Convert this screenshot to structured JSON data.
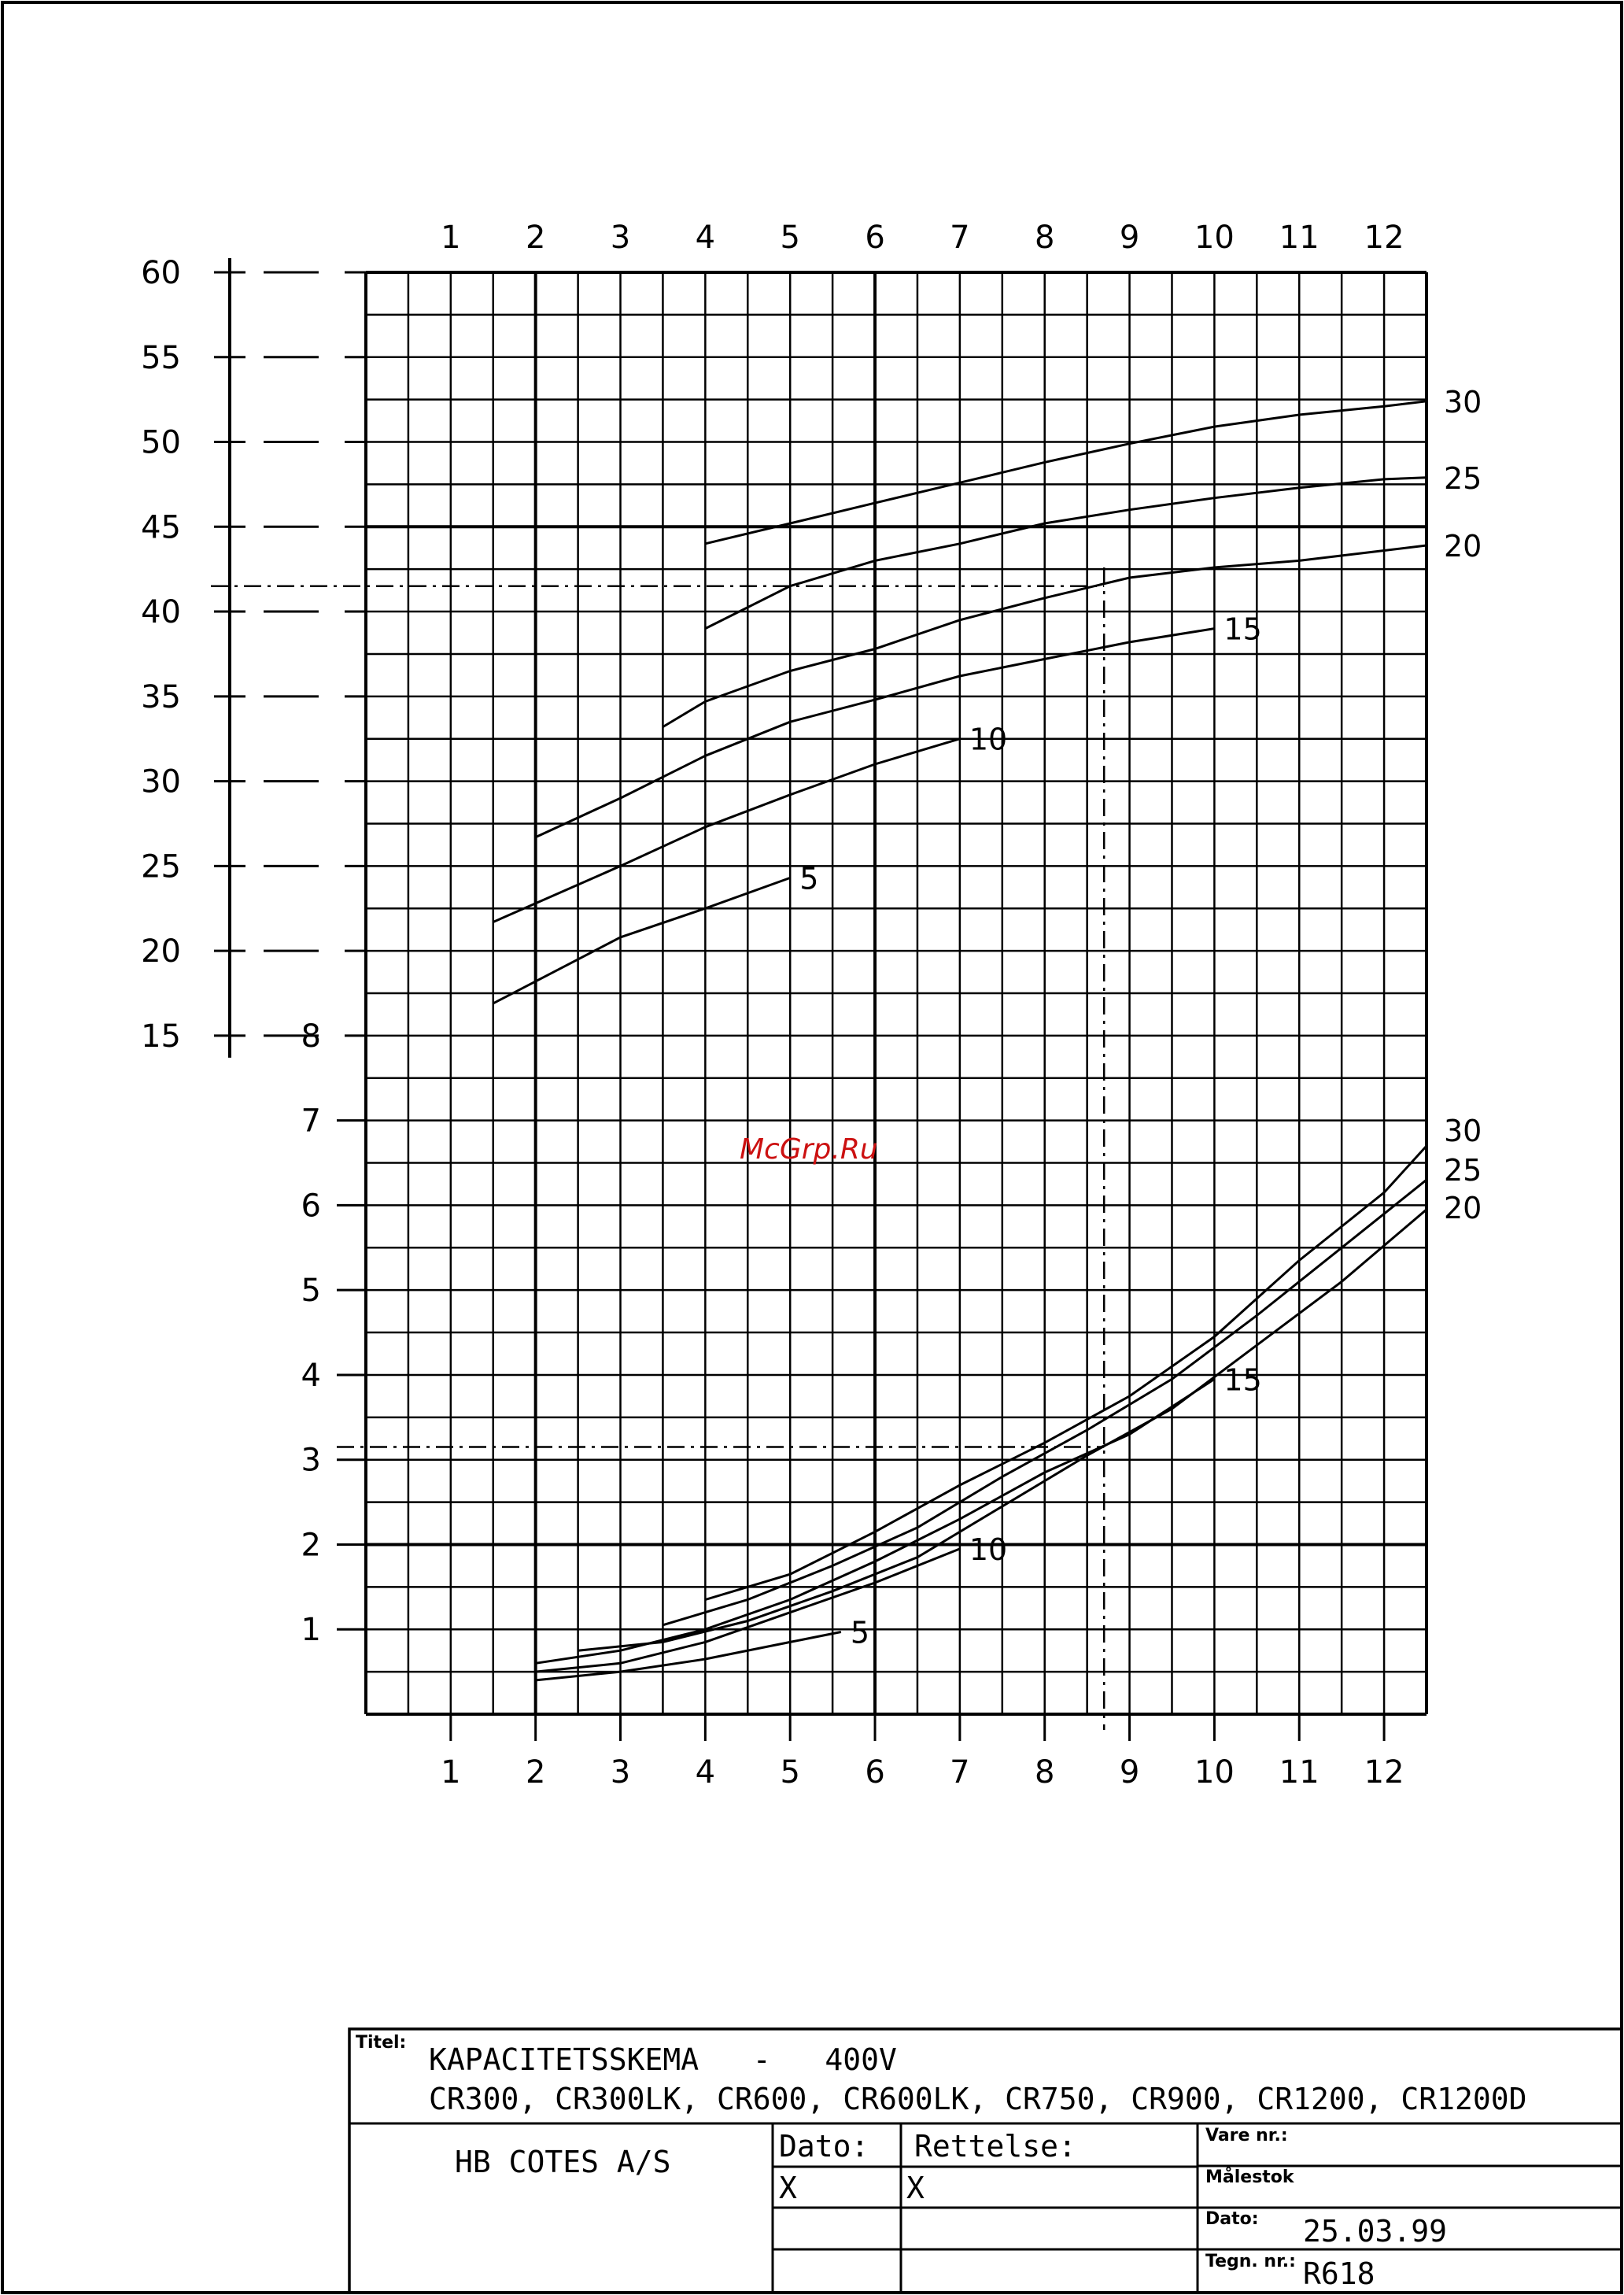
{
  "watermark": "McGrp.Ru",
  "chart_data": {
    "type": "line",
    "x_ticks": [
      "1",
      "2",
      "3",
      "4",
      "5",
      "6",
      "7",
      "8",
      "9",
      "10",
      "11",
      "12"
    ],
    "upper_y_ticks": [
      "60",
      "55",
      "50",
      "45",
      "40",
      "35",
      "30",
      "25",
      "20",
      "15"
    ],
    "lower_y_ticks": [
      "8",
      "7",
      "6",
      "5",
      "4",
      "3",
      "2",
      "1"
    ],
    "upper_panel": {
      "ylim": [
        15,
        60
      ],
      "series": [
        {
          "name": "5",
          "points": [
            [
              1.5,
              16.9
            ],
            [
              3.0,
              20.8
            ],
            [
              4.0,
              22.5
            ],
            [
              5.0,
              24.3
            ]
          ]
        },
        {
          "name": "10",
          "points": [
            [
              1.5,
              21.7
            ],
            [
              3.0,
              25.0
            ],
            [
              4.0,
              27.3
            ],
            [
              5.0,
              29.2
            ],
            [
              6.0,
              31.0
            ],
            [
              7.0,
              32.5
            ]
          ]
        },
        {
          "name": "15",
          "points": [
            [
              2.0,
              26.7
            ],
            [
              3.0,
              29.0
            ],
            [
              4.0,
              31.5
            ],
            [
              5.0,
              33.5
            ],
            [
              6.0,
              34.8
            ],
            [
              7.0,
              36.2
            ],
            [
              8.0,
              37.2
            ],
            [
              9.0,
              38.2
            ],
            [
              10.0,
              39.0
            ]
          ]
        },
        {
          "name": "20",
          "points": [
            [
              3.5,
              33.2
            ],
            [
              4.0,
              34.7
            ],
            [
              5.0,
              36.5
            ],
            [
              6.0,
              37.8
            ],
            [
              7.0,
              39.5
            ],
            [
              8.0,
              40.8
            ],
            [
              9.0,
              42.0
            ],
            [
              10.0,
              42.6
            ],
            [
              11.0,
              43.0
            ],
            [
              12.0,
              43.6
            ],
            [
              12.5,
              43.9
            ]
          ]
        },
        {
          "name": "25",
          "points": [
            [
              4.0,
              39.0
            ],
            [
              5.0,
              41.5
            ],
            [
              6.0,
              43.0
            ],
            [
              7.0,
              44.0
            ],
            [
              8.0,
              45.2
            ],
            [
              9.0,
              46.0
            ],
            [
              10.0,
              46.7
            ],
            [
              11.0,
              47.3
            ],
            [
              12.0,
              47.8
            ],
            [
              12.5,
              47.9
            ]
          ]
        },
        {
          "name": "30",
          "points": [
            [
              4.0,
              44.0
            ],
            [
              5.0,
              45.2
            ],
            [
              6.0,
              46.4
            ],
            [
              7.0,
              47.6
            ],
            [
              8.0,
              48.8
            ],
            [
              9.0,
              49.9
            ],
            [
              10.0,
              50.9
            ],
            [
              11.0,
              51.6
            ],
            [
              12.0,
              52.1
            ],
            [
              12.5,
              52.4
            ]
          ]
        }
      ]
    },
    "lower_panel": {
      "ylim": [
        0,
        8
      ],
      "series": [
        {
          "name": "5",
          "points": [
            [
              2.0,
              0.4
            ],
            [
              3.0,
              0.5
            ],
            [
              4.0,
              0.65
            ],
            [
              5.0,
              0.85
            ],
            [
              5.6,
              0.97
            ]
          ]
        },
        {
          "name": "10",
          "points": [
            [
              2.0,
              0.5
            ],
            [
              3.0,
              0.6
            ],
            [
              4.0,
              0.85
            ],
            [
              5.0,
              1.2
            ],
            [
              6.0,
              1.55
            ],
            [
              7.0,
              1.95
            ]
          ]
        },
        {
          "name": "15",
          "points": [
            [
              2.0,
              0.6
            ],
            [
              3.0,
              0.75
            ],
            [
              4.0,
              1.0
            ],
            [
              5.0,
              1.35
            ],
            [
              6.0,
              1.8
            ],
            [
              7.0,
              2.3
            ],
            [
              8.0,
              2.85
            ],
            [
              9.0,
              3.3
            ],
            [
              10.0,
              3.95
            ]
          ]
        },
        {
          "name": "20",
          "points": [
            [
              2.5,
              0.75
            ],
            [
              3.5,
              0.85
            ],
            [
              4.5,
              1.1
            ],
            [
              5.5,
              1.45
            ],
            [
              6.5,
              1.85
            ],
            [
              7.5,
              2.45
            ],
            [
              8.5,
              3.05
            ],
            [
              9.5,
              3.6
            ],
            [
              10.5,
              4.35
            ],
            [
              11.5,
              5.1
            ],
            [
              12.5,
              5.95
            ]
          ]
        },
        {
          "name": "25",
          "points": [
            [
              3.5,
              1.05
            ],
            [
              4.5,
              1.35
            ],
            [
              5.5,
              1.75
            ],
            [
              6.5,
              2.2
            ],
            [
              7.5,
              2.8
            ],
            [
              8.5,
              3.35
            ],
            [
              9.5,
              3.95
            ],
            [
              10.5,
              4.7
            ],
            [
              11.5,
              5.5
            ],
            [
              12.5,
              6.3
            ]
          ]
        },
        {
          "name": "30",
          "points": [
            [
              4.0,
              1.35
            ],
            [
              5.0,
              1.65
            ],
            [
              6.0,
              2.15
            ],
            [
              7.0,
              2.7
            ],
            [
              8.0,
              3.2
            ],
            [
              9.0,
              3.75
            ],
            [
              10.0,
              4.45
            ],
            [
              11.0,
              5.35
            ],
            [
              12.0,
              6.15
            ],
            [
              12.5,
              6.7
            ]
          ]
        }
      ]
    },
    "reference_x": 8.7,
    "reference_upper_y": 41.5,
    "reference_lower_y": 3.15
  },
  "title_block": {
    "titel_label": "Titel:",
    "title": "KAPACITETSSKEMA   -   400V",
    "models": "CR300, CR300LK, CR600, CR600LK, CR750, CR900, CR1200, CR1200D",
    "company": "HB COTES A/S",
    "dato_label": "Dato:",
    "rettelse_label": "Rettelse:",
    "dato_value": "X",
    "rettelse_value": "X",
    "vare_label": "Vare nr.:",
    "malestok_label": "Målestok",
    "dato_small_label": "Dato:",
    "date_value": "25.03.99",
    "tegn_label": "Tegn. nr.:",
    "tegn_value": "R618"
  }
}
